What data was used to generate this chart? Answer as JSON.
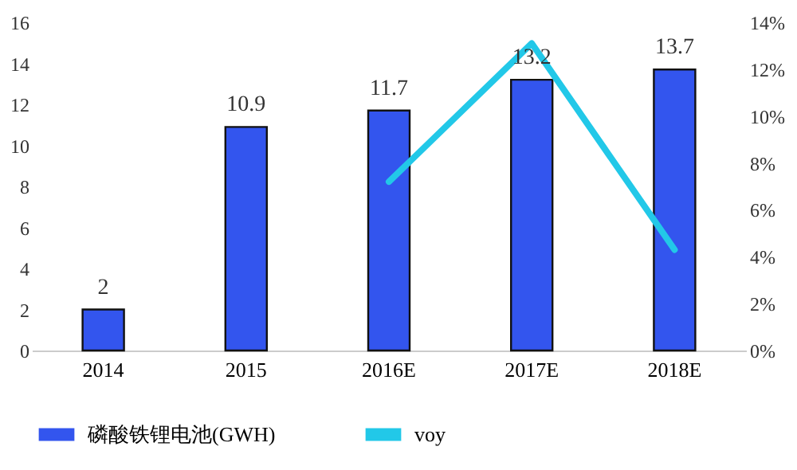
{
  "chart_data": {
    "type": "bar",
    "categories": [
      "2014",
      "2015",
      "2016E",
      "2017E",
      "2018E"
    ],
    "series": [
      {
        "name": "磷酸铁锂电池(GWH)",
        "color": "#3355ee",
        "values": [
          2,
          10.9,
          11.7,
          13.2,
          13.7
        ],
        "value_labels": [
          "2",
          "10.9",
          "11.7",
          "13.2",
          "13.7"
        ]
      },
      {
        "name": "voy",
        "type": "line",
        "axis": "y2",
        "color": "#22c8e8",
        "values": [
          null,
          null,
          7.2,
          13.1,
          4.3
        ]
      }
    ],
    "ylim": [
      0,
      16
    ],
    "yticks": [
      0,
      2,
      4,
      6,
      8,
      10,
      12,
      14,
      16
    ],
    "y2lim": [
      0,
      14
    ],
    "y2ticks": [
      {
        "value": 0,
        "label": "0%"
      },
      {
        "value": 2,
        "label": "2%"
      },
      {
        "value": 4,
        "label": "4%"
      },
      {
        "value": 6,
        "label": "6%"
      },
      {
        "value": 8,
        "label": "8%"
      },
      {
        "value": 10,
        "label": "10%"
      },
      {
        "value": 12,
        "label": "12%"
      },
      {
        "value": 14,
        "label": "14%"
      }
    ],
    "grid": false,
    "legend": "bottom",
    "marker": "none",
    "line_style": "solid"
  }
}
